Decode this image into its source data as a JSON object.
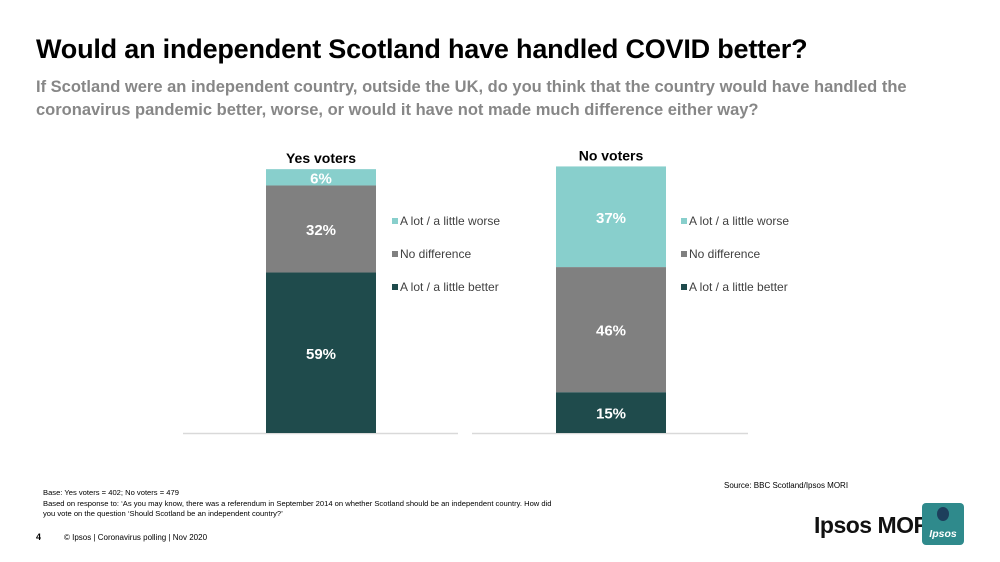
{
  "header": {
    "title": "Would an independent Scotland have handled COVID better?",
    "subtitle": "If Scotland were an independent country, outside the UK, do you think that the country would have handled the coronavirus pandemic better, worse, or would it have not made much difference either way?"
  },
  "chart_data": [
    {
      "type": "bar",
      "stacked": true,
      "title": "Yes voters",
      "categories": [
        "Yes voters"
      ],
      "series": [
        {
          "name": "A lot / a little better",
          "values": [
            59
          ],
          "color": "#1f4b4c",
          "label": "59%"
        },
        {
          "name": "No difference",
          "values": [
            32
          ],
          "color": "#808080",
          "label": "32%"
        },
        {
          "name": "A lot / a little worse",
          "values": [
            6
          ],
          "color": "#88cfcc",
          "label": "6%"
        }
      ],
      "legend": [
        "A lot / a little worse",
        "No difference",
        "A lot / a little better"
      ],
      "legend_placement": "right",
      "ylim": [
        0,
        100
      ],
      "grid": false
    },
    {
      "type": "bar",
      "stacked": true,
      "title": "No voters",
      "categories": [
        "No voters"
      ],
      "series": [
        {
          "name": "A lot / a little better",
          "values": [
            15
          ],
          "color": "#1f4b4c",
          "label": "15%"
        },
        {
          "name": "No difference",
          "values": [
            46
          ],
          "color": "#808080",
          "label": "46%"
        },
        {
          "name": "A lot / a little worse",
          "values": [
            37
          ],
          "color": "#88cfcc",
          "label": "37%"
        }
      ],
      "legend": [
        "A lot / a little worse",
        "No difference",
        "A lot / a little better"
      ],
      "legend_placement": "right",
      "ylim": [
        0,
        100
      ],
      "grid": false
    }
  ],
  "notes": {
    "base": "Base: Yes voters = 402; No voters = 479",
    "based_on": "Based on response to: ‘As you may know, there was a referendum in September 2014 on whether Scotland should be an independent country. How did you vote on the question ‘Should Scotland be an independent country?’"
  },
  "source": "Source: BBC Scotland/Ipsos MORI",
  "footer": {
    "page_number": "4",
    "text": "© Ipsos | Coronavirus polling | Nov 2020"
  },
  "brand": {
    "name": "Ipsos MORI",
    "logo_text": "Ipsos"
  }
}
